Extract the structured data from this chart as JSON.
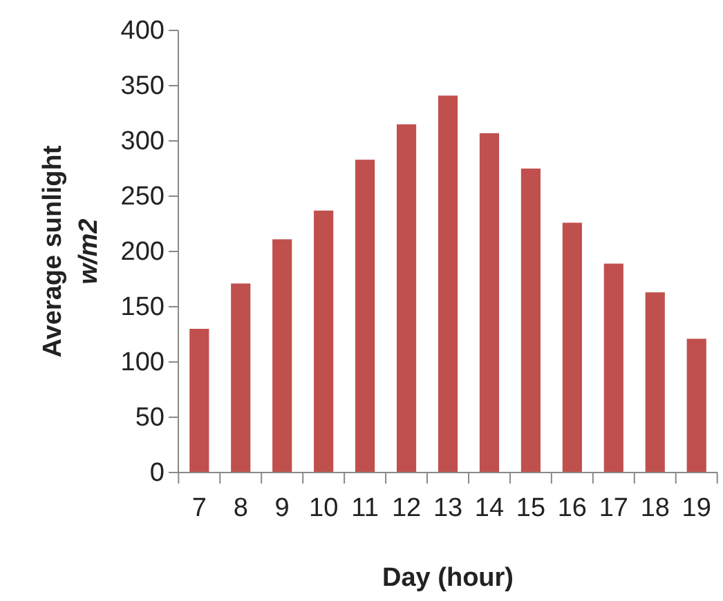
{
  "chart_data": {
    "type": "bar",
    "xlabel": "Day (hour)",
    "ylabel": "Average sunlight",
    "categories": [
      "7",
      "8",
      "9",
      "10",
      "11",
      "12",
      "13",
      "14",
      "15",
      "16",
      "17",
      "18",
      "19"
    ],
    "values": [
      130,
      171,
      211,
      237,
      283,
      315,
      341,
      307,
      275,
      226,
      189,
      163,
      121
    ],
    "color": "#c0504d",
    "ylim": [
      0,
      400
    ],
    "yticks": [
      0,
      50,
      100,
      150,
      200,
      250,
      300,
      350,
      400
    ],
    "grid": false,
    "annotations": [
      "w/m2"
    ]
  }
}
